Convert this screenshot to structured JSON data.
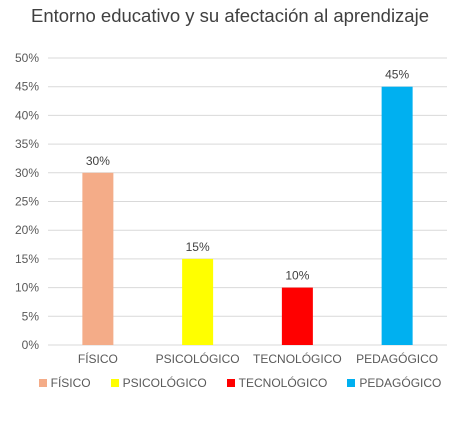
{
  "chart_data": {
    "type": "bar",
    "title": "Entorno educativo y su afectación al aprendizaje",
    "categories": [
      "FÍSICO",
      "PSICOLÓGICO",
      "TECNOLÓGICO",
      "PEDAGÓGICO"
    ],
    "values": [
      30,
      15,
      10,
      45
    ],
    "data_labels": [
      "30%",
      "15%",
      "10%",
      "45%"
    ],
    "colors": [
      "#F4AC88",
      "#FFFF00",
      "#FF0000",
      "#00B0F0"
    ],
    "ylim": [
      0,
      50
    ],
    "yticks": [
      "0%",
      "5%",
      "10%",
      "15%",
      "20%",
      "25%",
      "30%",
      "35%",
      "40%",
      "45%",
      "50%"
    ],
    "grid": true,
    "legend_position": "bottom",
    "legend": [
      "FÍSICO",
      "PSICOLÓGICO",
      "TECNOLÓGICO",
      "PEDAGÓGICO"
    ]
  }
}
